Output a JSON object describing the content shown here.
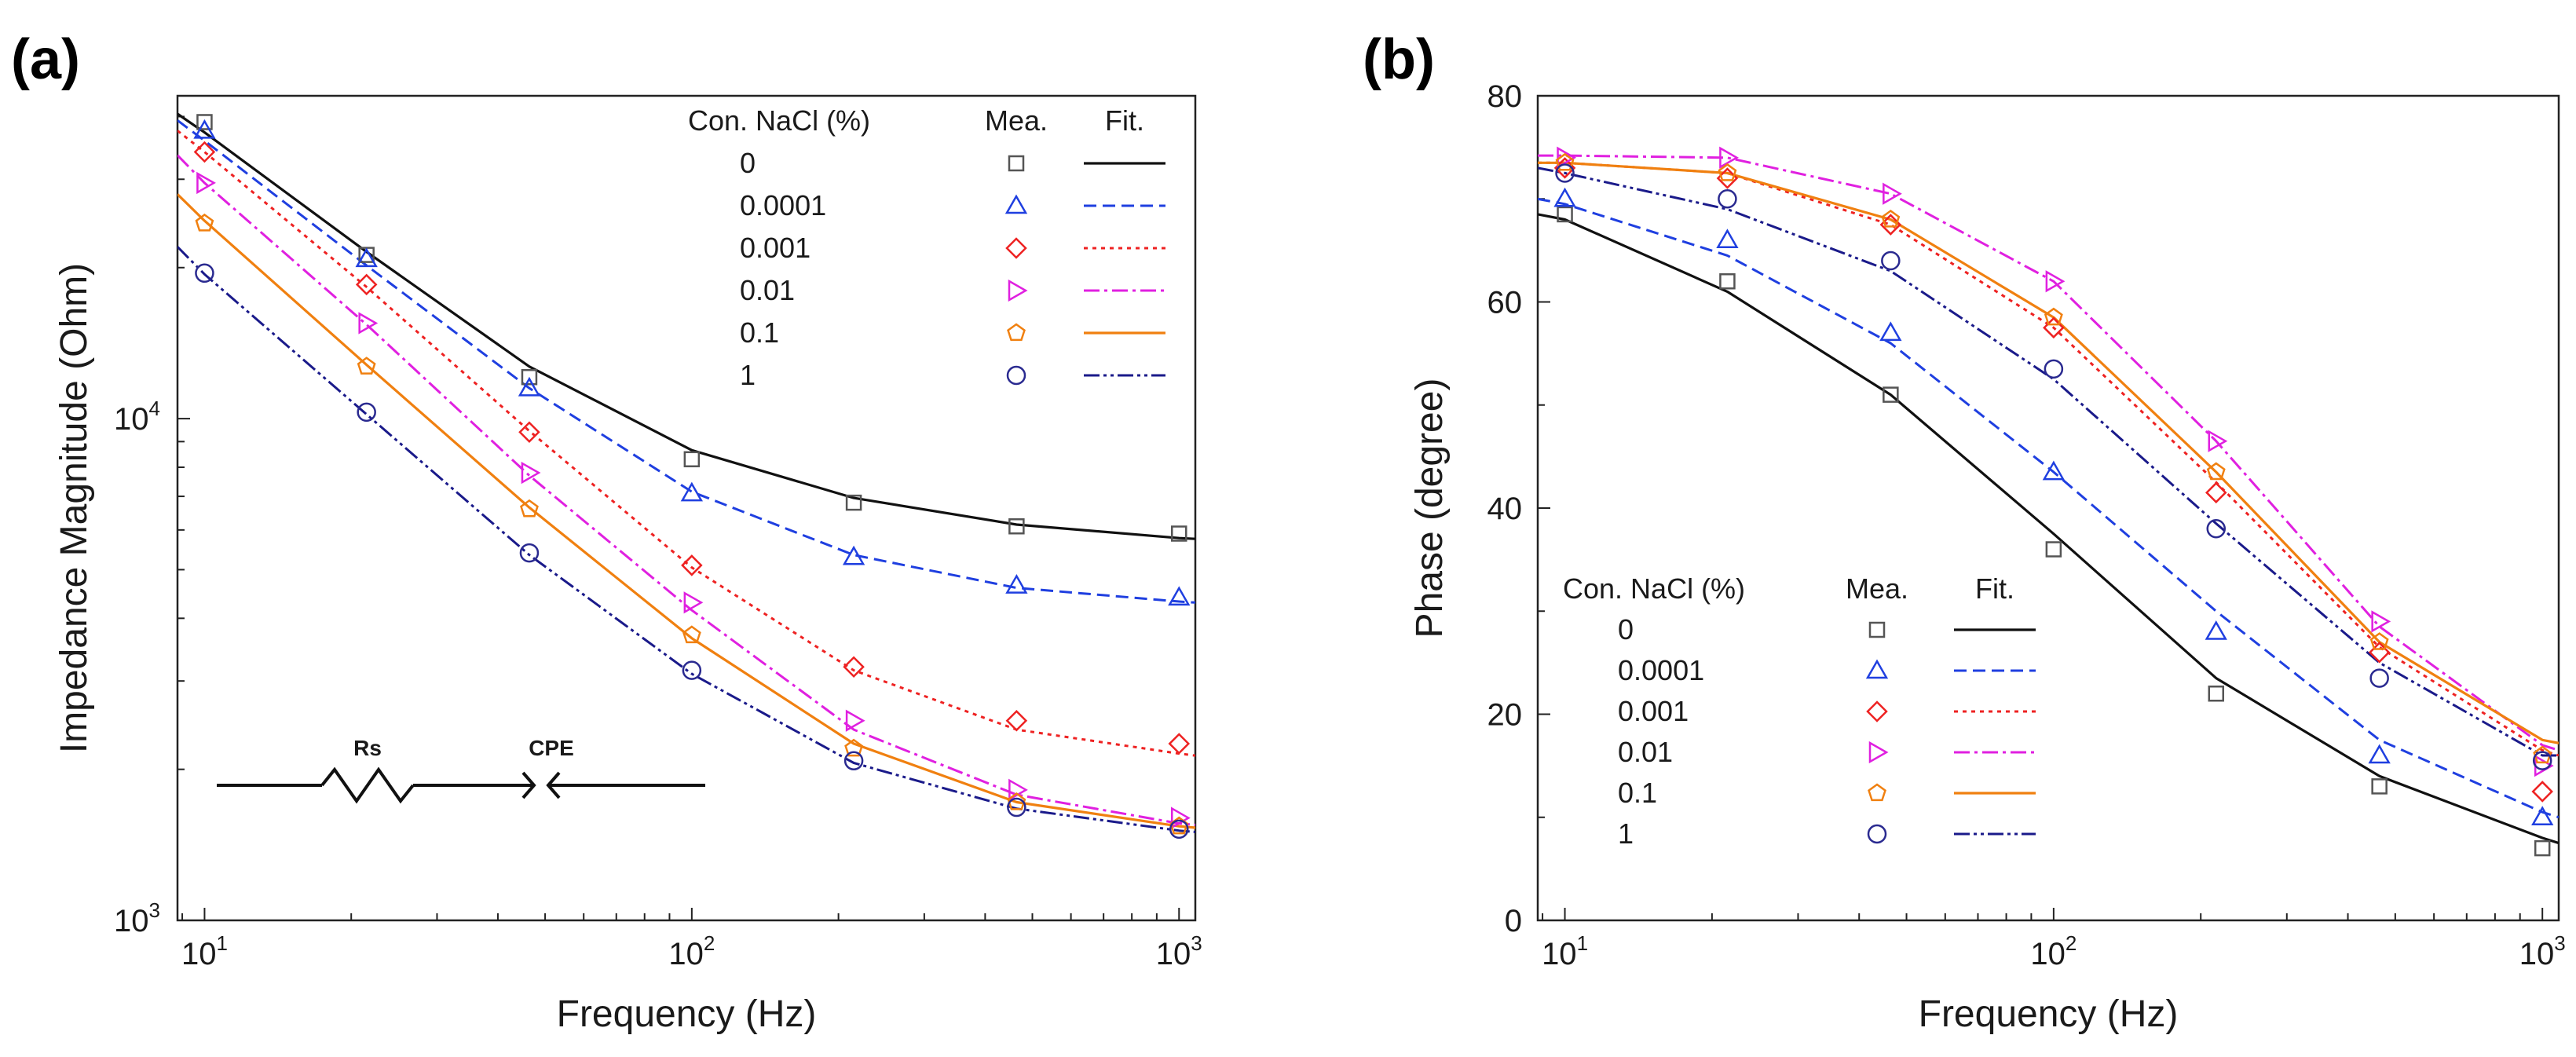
{
  "colors": {
    "0": "#111111",
    "0.0001": "#1f3fe0",
    "0.001": "#ee2222",
    "0.01": "#e020e0",
    "0.1": "#f08010",
    "1": "#1a1a8a",
    "meas_0": "#555555",
    "meas_1": "#2a2a90"
  },
  "chart_data": [
    {
      "type": "line",
      "panel": "(a)",
      "xlabel": "Frequency (Hz)",
      "ylabel": "Impedance Magnitude (Ohm)",
      "xscale": "log",
      "yscale": "log",
      "xlim": [
        8.8,
        1080
      ],
      "ylim": [
        1000,
        44000
      ],
      "x_ticks": [
        {
          "base": "10",
          "exp": "1"
        },
        {
          "base": "10",
          "exp": "2"
        },
        {
          "base": "10",
          "exp": "3"
        }
      ],
      "y_ticks": [
        {
          "value": 1000,
          "base": "10",
          "exp": "3"
        },
        {
          "value": 10000,
          "base": "10",
          "exp": "4"
        }
      ],
      "x": [
        10,
        21.5,
        46.4,
        100,
        215,
        464,
        1000
      ],
      "legend_headers": {
        "concentration": "Con. NaCl (%)",
        "measured": "Mea.",
        "fit": "Fit."
      },
      "legend_position": "top-right",
      "circuit": {
        "rs_label": "Rs",
        "cpe_label": "CPE"
      },
      "series": [
        {
          "name": "0",
          "marker": "square",
          "line": "solid",
          "measured": [
            39000,
            21200,
            12100,
            8300,
            6800,
            6100,
            5900
          ],
          "fit_x": [
            8.8,
            10,
            21.5,
            46.4,
            100,
            215,
            464,
            1000,
            1080
          ],
          "fit": [
            40500,
            37200,
            21500,
            12700,
            8650,
            6950,
            6150,
            5780,
            5760
          ]
        },
        {
          "name": "0.0001",
          "marker": "triangle-up",
          "line": "dashed",
          "measured": [
            37500,
            20800,
            11500,
            7100,
            5300,
            4650,
            4400
          ],
          "fit_x": [
            8.8,
            10,
            21.5,
            46.4,
            100,
            215,
            464,
            1000,
            1080
          ],
          "fit": [
            39300,
            35800,
            20200,
            11500,
            7150,
            5350,
            4600,
            4320,
            4300
          ]
        },
        {
          "name": "0.001",
          "marker": "diamond",
          "line": "dotted",
          "measured": [
            34000,
            18500,
            9400,
            5100,
            3200,
            2500,
            2250
          ],
          "fit_x": [
            8.8,
            10,
            21.5,
            46.4,
            100,
            215,
            464,
            1000,
            1080
          ],
          "fit": [
            37500,
            34000,
            18300,
            9450,
            5050,
            3150,
            2400,
            2150,
            2130
          ]
        },
        {
          "name": "0.01",
          "marker": "triangle-right",
          "line": "dashdot",
          "measured": [
            29500,
            15500,
            7800,
            4300,
            2500,
            1820,
            1600
          ],
          "fit_x": [
            8.8,
            10,
            21.5,
            46.4,
            100,
            215,
            464,
            1000,
            1080
          ],
          "fit": [
            33500,
            29500,
            15400,
            7700,
            4150,
            2400,
            1780,
            1560,
            1550
          ]
        },
        {
          "name": "0.1",
          "marker": "pentagon",
          "line": "solid",
          "measured": [
            24500,
            12700,
            6600,
            3700,
            2200,
            1720,
            1540
          ],
          "fit_x": [
            8.8,
            10,
            21.5,
            46.4,
            100,
            215,
            464,
            1000,
            1080
          ],
          "fit": [
            28000,
            24800,
            12800,
            6650,
            3650,
            2250,
            1720,
            1540,
            1530
          ]
        },
        {
          "name": "1",
          "marker": "circle",
          "line": "dashdotdot",
          "measured": [
            19500,
            10300,
            5400,
            3150,
            2080,
            1680,
            1520
          ],
          "fit_x": [
            8.8,
            10,
            21.5,
            46.4,
            100,
            215,
            464,
            1000,
            1080
          ],
          "fit": [
            22000,
            19400,
            10200,
            5350,
            3100,
            2060,
            1670,
            1510,
            1500
          ]
        }
      ]
    },
    {
      "type": "line",
      "panel": "(b)",
      "xlabel": "Frequency (Hz)",
      "ylabel": "Phase (degree)",
      "xscale": "log",
      "yscale": "linear",
      "xlim": [
        8.8,
        1080
      ],
      "ylim": [
        0,
        80
      ],
      "x_ticks": [
        {
          "base": "10",
          "exp": "1"
        },
        {
          "base": "10",
          "exp": "2"
        },
        {
          "base": "10",
          "exp": "3"
        }
      ],
      "y_ticks": [
        {
          "value": 0,
          "label": "0"
        },
        {
          "value": 20,
          "label": "20"
        },
        {
          "value": 40,
          "label": "40"
        },
        {
          "value": 60,
          "label": "60"
        },
        {
          "value": 80,
          "label": "80"
        }
      ],
      "x": [
        10,
        21.5,
        46.4,
        100,
        215,
        464,
        1000
      ],
      "legend_headers": {
        "concentration": "Con. NaCl (%)",
        "measured": "Mea.",
        "fit": "Fit."
      },
      "legend_position": "bottom-left",
      "series": [
        {
          "name": "0",
          "marker": "square",
          "line": "solid",
          "measured": [
            68.5,
            62,
            51,
            36,
            22,
            13,
            7
          ],
          "fit_x": [
            8.8,
            10,
            21.5,
            46.4,
            100,
            215,
            464,
            1000,
            1080
          ],
          "fit": [
            68.5,
            68,
            61,
            51,
            37.5,
            23.5,
            14,
            8,
            7.5
          ]
        },
        {
          "name": "0.0001",
          "marker": "triangle-up",
          "line": "dashed",
          "measured": [
            70,
            66,
            57,
            43.5,
            28,
            16,
            10
          ],
          "fit_x": [
            8.8,
            10,
            21.5,
            46.4,
            100,
            215,
            464,
            1000,
            1080
          ],
          "fit": [
            70,
            69.5,
            64.5,
            56,
            43.5,
            30,
            17.5,
            10.5,
            10
          ]
        },
        {
          "name": "0.001",
          "marker": "diamond",
          "line": "dotted",
          "measured": [
            73,
            72,
            67.5,
            57.5,
            41.5,
            26,
            12.5
          ],
          "fit_x": [
            8.8,
            10,
            21.5,
            46.4,
            100,
            215,
            464,
            1000,
            1080
          ],
          "fit": [
            73.5,
            73.5,
            72.5,
            67.5,
            57.5,
            42.5,
            26.5,
            16.5,
            16
          ]
        },
        {
          "name": "0.01",
          "marker": "triangle-right",
          "line": "dashdot",
          "measured": [
            74,
            74,
            70.5,
            62,
            46.5,
            29,
            15
          ],
          "fit_x": [
            8.8,
            10,
            21.5,
            46.4,
            100,
            215,
            464,
            1000,
            1080
          ],
          "fit": [
            74.2,
            74.2,
            74,
            70.5,
            62,
            46.5,
            28.5,
            17,
            16.5
          ]
        },
        {
          "name": "0.1",
          "marker": "pentagon",
          "line": "solid",
          "measured": [
            73.5,
            72.5,
            68,
            58.5,
            43.5,
            27,
            16
          ],
          "fit_x": [
            8.8,
            10,
            21.5,
            46.4,
            100,
            215,
            464,
            1000,
            1080
          ],
          "fit": [
            73.5,
            73.5,
            72.5,
            68,
            58.5,
            43.5,
            27,
            17.5,
            17.2
          ]
        },
        {
          "name": "1",
          "marker": "circle",
          "line": "dashdotdot",
          "measured": [
            72.5,
            70,
            64,
            53.5,
            38,
            23.5,
            15.5
          ],
          "fit_x": [
            8.8,
            10,
            21.5,
            46.4,
            100,
            215,
            464,
            1000,
            1080
          ],
          "fit": [
            73,
            72.5,
            69,
            63,
            52.5,
            38.5,
            25,
            16,
            16
          ]
        }
      ]
    }
  ]
}
